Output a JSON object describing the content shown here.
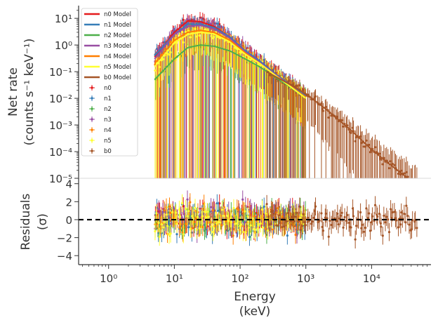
{
  "chart_data": {
    "type": "scatter",
    "panels": [
      {
        "name": "spectrum",
        "ylabel_line1": "Net rate",
        "ylabel_line2": "(counts s⁻¹ keV⁻¹)",
        "yscale": "log",
        "ylim": [
          1e-05,
          30
        ],
        "yticks": [
          {
            "value": 10,
            "label": "10¹"
          },
          {
            "value": 1,
            "label": "10⁰"
          },
          {
            "value": 0.1,
            "label": "10⁻¹"
          },
          {
            "value": 0.01,
            "label": "10⁻²"
          },
          {
            "value": 0.001,
            "label": "10⁻³"
          },
          {
            "value": 0.0001,
            "label": "10⁻⁴"
          },
          {
            "value": 1e-05,
            "label": "10⁻⁵"
          }
        ]
      },
      {
        "name": "residuals",
        "ylabel_line1": "Residuals",
        "ylabel_line2": "(σ)",
        "yscale": "linear",
        "ylim": [
          -5,
          4.6
        ],
        "yticks": [
          {
            "value": 4,
            "label": "4"
          },
          {
            "value": 2,
            "label": "2"
          },
          {
            "value": 0,
            "label": "0"
          },
          {
            "value": -2,
            "label": "−2"
          },
          {
            "value": -4,
            "label": "−4"
          }
        ],
        "reference_line": {
          "y": 0,
          "style": "dashed",
          "color": "#000000"
        }
      }
    ],
    "xscale": "log",
    "xlim": [
      0.35,
      80000
    ],
    "xticks": [
      {
        "value": 1,
        "label": "10⁰"
      },
      {
        "value": 10,
        "label": "10¹"
      },
      {
        "value": 100,
        "label": "10²"
      },
      {
        "value": 1000,
        "label": "10³"
      },
      {
        "value": 10000,
        "label": "10⁴"
      }
    ],
    "xlabel_line1": "Energy",
    "xlabel_line2": "(keV)",
    "legend_position": "top-left",
    "model_legend": [
      {
        "name": "n0 Model",
        "color": "#e41a1c"
      },
      {
        "name": "n1 Model",
        "color": "#377eb8"
      },
      {
        "name": "n2 Model",
        "color": "#4daf4a"
      },
      {
        "name": "n3 Model",
        "color": "#984ea3"
      },
      {
        "name": "n4 Model",
        "color": "#ff7f00"
      },
      {
        "name": "n5 Model",
        "color": "#ffff33"
      },
      {
        "name": "b0 Model",
        "color": "#a65628"
      }
    ],
    "series": [
      {
        "name": "n0",
        "color": "#e41a1c",
        "energy_range": [
          5,
          1000
        ],
        "model": [
          [
            5,
            0.35
          ],
          [
            10,
            3.0
          ],
          [
            16,
            8.0
          ],
          [
            25,
            7.5
          ],
          [
            40,
            5.0
          ],
          [
            70,
            2.0
          ],
          [
            120,
            0.6
          ],
          [
            200,
            0.25
          ],
          [
            350,
            0.08
          ],
          [
            600,
            0.03
          ],
          [
            1000,
            0.012
          ]
        ]
      },
      {
        "name": "n1",
        "color": "#377eb8",
        "energy_range": [
          5,
          1000
        ],
        "model": [
          [
            5,
            0.4
          ],
          [
            10,
            2.5
          ],
          [
            16,
            6.0
          ],
          [
            25,
            6.0
          ],
          [
            40,
            4.5
          ],
          [
            70,
            2.0
          ],
          [
            120,
            0.6
          ],
          [
            200,
            0.25
          ],
          [
            350,
            0.08
          ],
          [
            600,
            0.03
          ],
          [
            1000,
            0.012
          ]
        ]
      },
      {
        "name": "n2",
        "color": "#4daf4a",
        "energy_range": [
          5,
          1000
        ],
        "model": [
          [
            5,
            0.05
          ],
          [
            10,
            0.3
          ],
          [
            16,
            0.8
          ],
          [
            25,
            1.0
          ],
          [
            40,
            0.9
          ],
          [
            70,
            0.6
          ],
          [
            120,
            0.3
          ],
          [
            200,
            0.15
          ],
          [
            350,
            0.06
          ],
          [
            600,
            0.025
          ],
          [
            1000,
            0.01
          ]
        ]
      },
      {
        "name": "n3",
        "color": "#984ea3",
        "energy_range": [
          5,
          1000
        ],
        "model": [
          [
            5,
            0.3
          ],
          [
            10,
            2.5
          ],
          [
            16,
            5.0
          ],
          [
            25,
            5.5
          ],
          [
            40,
            4.0
          ],
          [
            70,
            1.8
          ],
          [
            120,
            0.55
          ],
          [
            200,
            0.22
          ],
          [
            350,
            0.075
          ],
          [
            600,
            0.028
          ],
          [
            1000,
            0.011
          ]
        ]
      },
      {
        "name": "n4",
        "color": "#ff7f00",
        "energy_range": [
          5,
          1000
        ],
        "model": [
          [
            5,
            0.2
          ],
          [
            10,
            1.5
          ],
          [
            16,
            3.0
          ],
          [
            25,
            3.5
          ],
          [
            40,
            3.0
          ],
          [
            70,
            1.5
          ],
          [
            120,
            0.5
          ],
          [
            200,
            0.2
          ],
          [
            350,
            0.07
          ],
          [
            600,
            0.027
          ],
          [
            1000,
            0.011
          ]
        ]
      },
      {
        "name": "n5",
        "color": "#ffff33",
        "energy_range": [
          5,
          1000
        ],
        "model": [
          [
            5,
            0.15
          ],
          [
            10,
            1.2
          ],
          [
            16,
            2.5
          ],
          [
            25,
            3.0
          ],
          [
            40,
            2.6
          ],
          [
            70,
            1.3
          ],
          [
            120,
            0.45
          ],
          [
            200,
            0.2
          ],
          [
            350,
            0.07
          ],
          [
            600,
            0.026
          ],
          [
            1000,
            0.01
          ]
        ]
      },
      {
        "name": "b0",
        "color": "#a65628",
        "energy_range": [
          250,
          50000
        ],
        "model": [
          [
            250,
            0.1
          ],
          [
            500,
            0.04
          ],
          [
            1000,
            0.015
          ],
          [
            2000,
            0.004
          ],
          [
            5000,
            0.0006
          ],
          [
            10000,
            0.00012
          ],
          [
            20000,
            3e-05
          ],
          [
            40000,
            8e-06
          ]
        ]
      }
    ]
  }
}
